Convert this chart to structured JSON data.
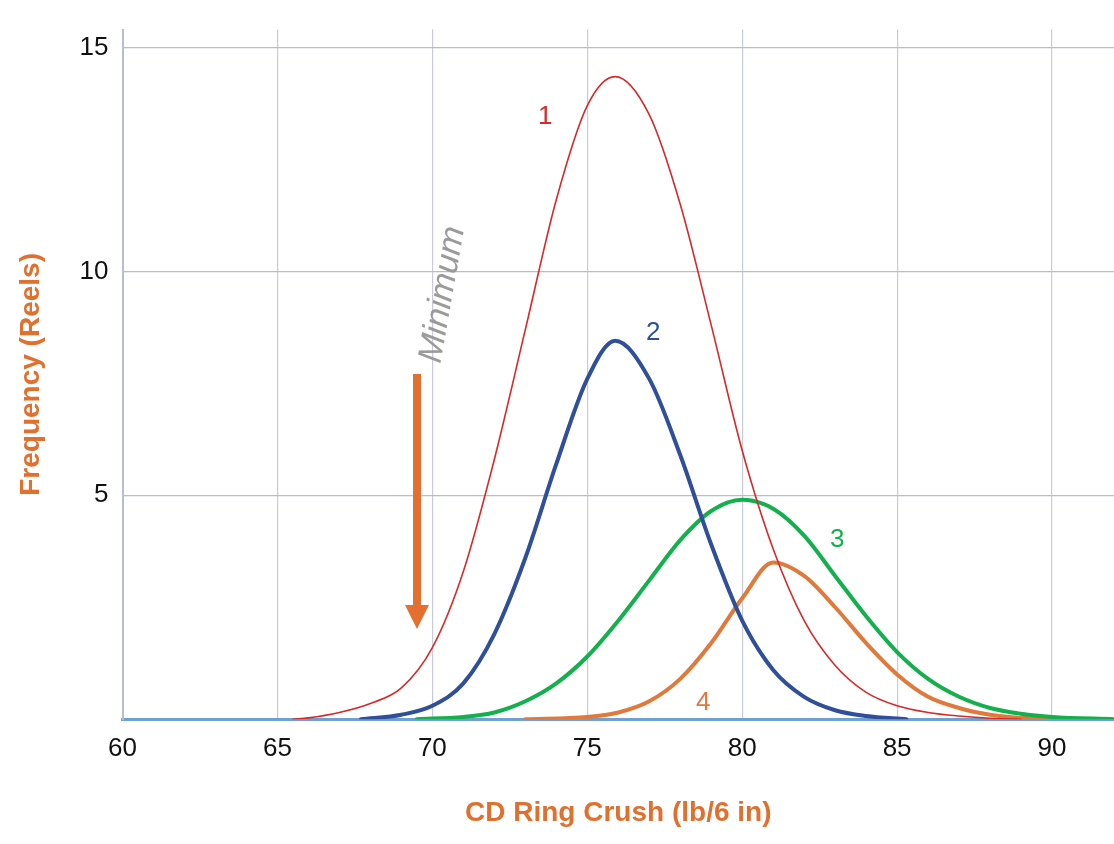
{
  "chart_data": {
    "type": "line",
    "xlabel": "CD Ring Crush (lb/6 in)",
    "ylabel": "Frequency (Reels)",
    "xlim": [
      60,
      92
    ],
    "xticks": [
      60,
      65,
      70,
      75,
      80,
      85,
      90
    ],
    "ylim": [
      0,
      15.4
    ],
    "yticks": [
      {
        "value": 0,
        "label": null
      },
      5,
      10,
      15
    ],
    "grid": true,
    "legend": false,
    "marker": "none",
    "line_style": "solid",
    "annotations": [
      "Minimum"
    ],
    "series": [
      {
        "name": "1",
        "color": "#d42a2a",
        "x": [
          65.5,
          66,
          67,
          68,
          69,
          70,
          71,
          72,
          73,
          74,
          75,
          75.9,
          77,
          78,
          79,
          80,
          81,
          82,
          83,
          84,
          85,
          86,
          87,
          88,
          89
        ],
        "values": [
          0,
          0.03,
          0.15,
          0.35,
          0.7,
          1.6,
          3.3,
          5.8,
          8.7,
          11.6,
          13.7,
          14.35,
          13.5,
          11.5,
          8.8,
          6.0,
          3.8,
          2.2,
          1.2,
          0.6,
          0.3,
          0.15,
          0.07,
          0.02,
          0
        ]
      },
      {
        "name": "2",
        "color": "#2f4f98",
        "x": [
          67.7,
          69,
          70,
          71,
          72,
          73,
          74,
          75,
          75.9,
          77,
          78,
          79,
          80,
          81,
          82,
          83,
          84,
          85.3
        ],
        "values": [
          0,
          0.1,
          0.3,
          0.8,
          1.9,
          3.6,
          5.7,
          7.6,
          8.45,
          7.6,
          5.9,
          3.9,
          2.2,
          1.1,
          0.5,
          0.2,
          0.07,
          0
        ]
      },
      {
        "name": "3",
        "color": "#13b04d",
        "x": [
          69.5,
          71,
          72,
          73,
          74,
          75,
          76,
          77,
          78,
          79,
          80,
          81,
          82,
          83,
          84,
          85,
          86,
          87,
          88,
          89,
          90,
          92
        ],
        "values": [
          0,
          0.05,
          0.15,
          0.4,
          0.8,
          1.4,
          2.2,
          3.1,
          4.0,
          4.65,
          4.9,
          4.7,
          4.1,
          3.2,
          2.3,
          1.5,
          0.9,
          0.5,
          0.25,
          0.12,
          0.05,
          0
        ]
      },
      {
        "name": "4",
        "color": "#e07a3c",
        "x": [
          73,
          75,
          76,
          77,
          78,
          79,
          80,
          81,
          82,
          83,
          84,
          85,
          86,
          87,
          88,
          89,
          90
        ],
        "values": [
          0,
          0.05,
          0.15,
          0.4,
          0.9,
          1.7,
          2.7,
          3.5,
          3.2,
          2.5,
          1.7,
          1.0,
          0.5,
          0.25,
          0.1,
          0.03,
          0
        ]
      }
    ]
  }
}
